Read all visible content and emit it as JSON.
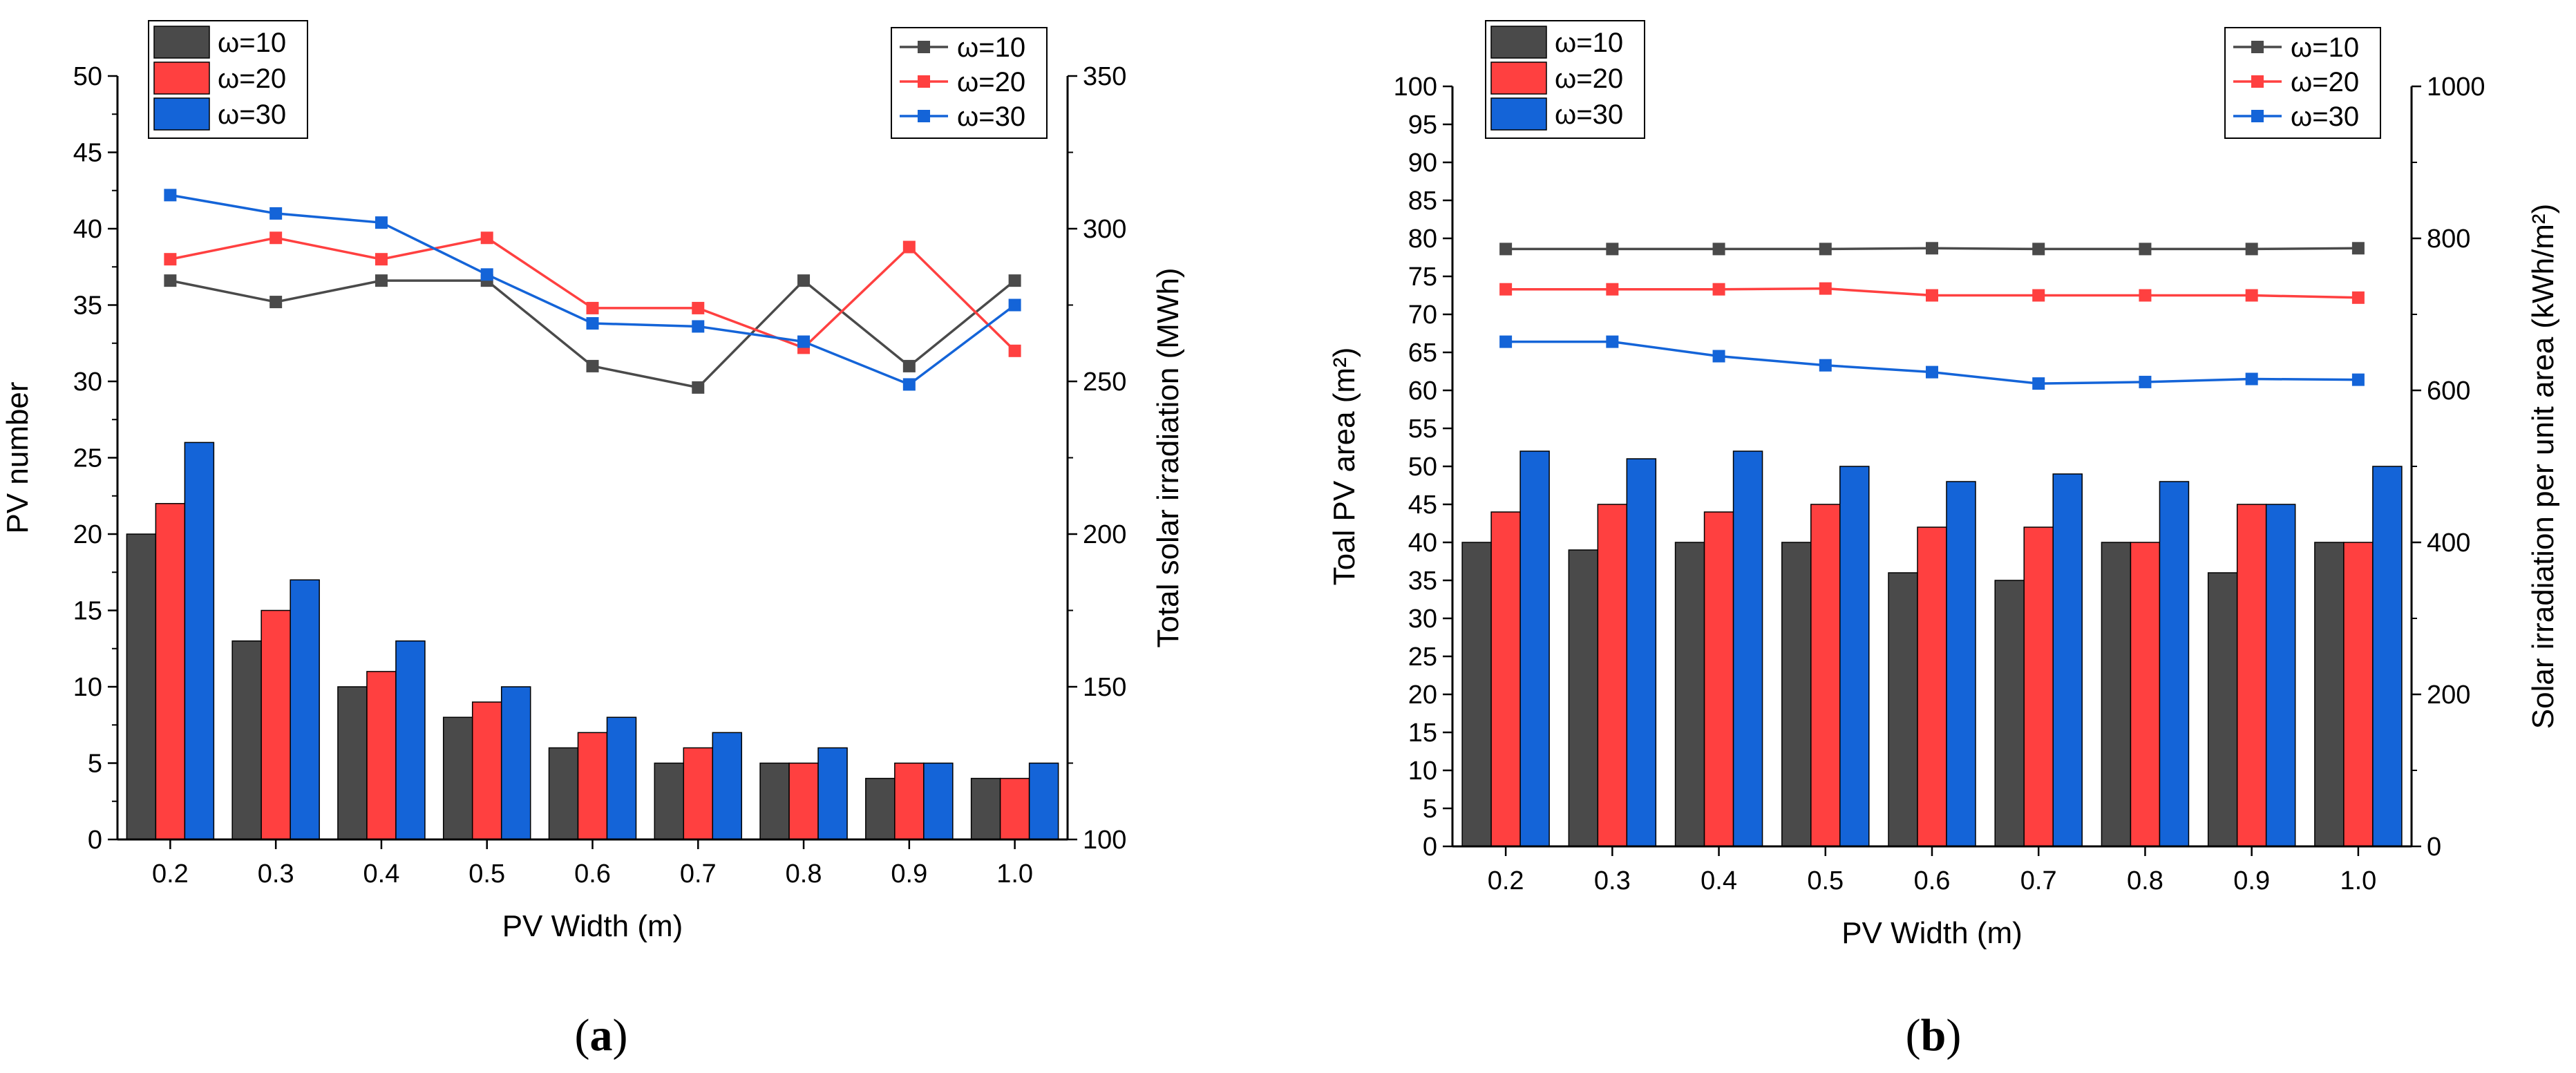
{
  "chart_data": [
    {
      "type": "bar",
      "panel_label": "a",
      "categories": [
        "0.2",
        "0.3",
        "0.4",
        "0.5",
        "0.6",
        "0.7",
        "0.8",
        "0.9",
        "1.0"
      ],
      "xlabel": "PV Width (m)",
      "ylabel": "PV number",
      "ylim": [
        0,
        50
      ],
      "yticks": [
        "0",
        "5",
        "10",
        "15",
        "20",
        "25",
        "30",
        "35",
        "40",
        "45",
        "50"
      ],
      "y2label": "Total solar irradiation (MWh)",
      "y2lim": [
        100,
        350
      ],
      "y2ticks": [
        "100",
        "150",
        "200",
        "250",
        "300",
        "350"
      ],
      "bar_series": [
        {
          "name": "ω=10",
          "color": "#4a4a4a",
          "values": [
            20,
            13,
            10,
            8,
            6,
            5,
            5,
            4,
            4
          ]
        },
        {
          "name": "ω=20",
          "color": "#ff4040",
          "values": [
            22,
            15,
            11,
            9,
            7,
            6,
            5,
            5,
            4
          ]
        },
        {
          "name": "ω=30",
          "color": "#1464d8",
          "values": [
            26,
            17,
            13,
            10,
            8,
            7,
            6,
            5,
            5
          ]
        }
      ],
      "line_series": [
        {
          "name": "ω=10",
          "color": "#4a4a4a",
          "values": [
            283,
            276,
            283,
            283,
            255,
            248,
            283,
            255,
            283
          ]
        },
        {
          "name": "ω=20",
          "color": "#ff4040",
          "values": [
            290,
            297,
            290,
            297,
            274,
            274,
            261,
            294,
            260
          ]
        },
        {
          "name": "ω=30",
          "color": "#1464d8",
          "values": [
            311,
            305,
            302,
            285,
            269,
            268,
            263,
            249,
            275
          ]
        }
      ]
    },
    {
      "type": "bar",
      "panel_label": "b",
      "categories": [
        "0.2",
        "0.3",
        "0.4",
        "0.5",
        "0.6",
        "0.7",
        "0.8",
        "0.9",
        "1.0"
      ],
      "xlabel": "PV Width (m)",
      "ylabel": "Toal PV area (m²)",
      "ylim": [
        0,
        100
      ],
      "yticks": [
        "0",
        "5",
        "10",
        "15",
        "20",
        "25",
        "30",
        "35",
        "40",
        "45",
        "50",
        "55",
        "60",
        "65",
        "70",
        "75",
        "80",
        "85",
        "90",
        "95",
        "100"
      ],
      "y2label": "Solar irradiation per unit area (kWh/m²)",
      "y2lim": [
        0,
        1000
      ],
      "y2ticks": [
        "0",
        "200",
        "400",
        "600",
        "800",
        "1000"
      ],
      "bar_series": [
        {
          "name": "ω=10",
          "color": "#4a4a4a",
          "values": [
            40,
            39,
            40,
            40,
            36,
            35,
            40,
            36,
            40
          ]
        },
        {
          "name": "ω=20",
          "color": "#ff4040",
          "values": [
            44,
            45,
            44,
            45,
            42,
            42,
            40,
            45,
            40
          ]
        },
        {
          "name": "ω=30",
          "color": "#1464d8",
          "values": [
            52,
            51,
            52,
            50,
            48,
            49,
            48,
            45,
            50
          ]
        }
      ],
      "line_series": [
        {
          "name": "ω=10",
          "color": "#4a4a4a",
          "values": [
            786,
            786,
            786,
            786,
            787,
            786,
            786,
            786,
            787
          ]
        },
        {
          "name": "ω=20",
          "color": "#ff4040",
          "values": [
            733,
            733,
            733,
            734,
            725,
            725,
            725,
            725,
            722
          ]
        },
        {
          "name": "ω=30",
          "color": "#1464d8",
          "values": [
            664,
            664,
            645,
            633,
            624,
            609,
            611,
            615,
            614
          ]
        }
      ]
    }
  ],
  "captions": [
    "(a)",
    "(b)"
  ]
}
